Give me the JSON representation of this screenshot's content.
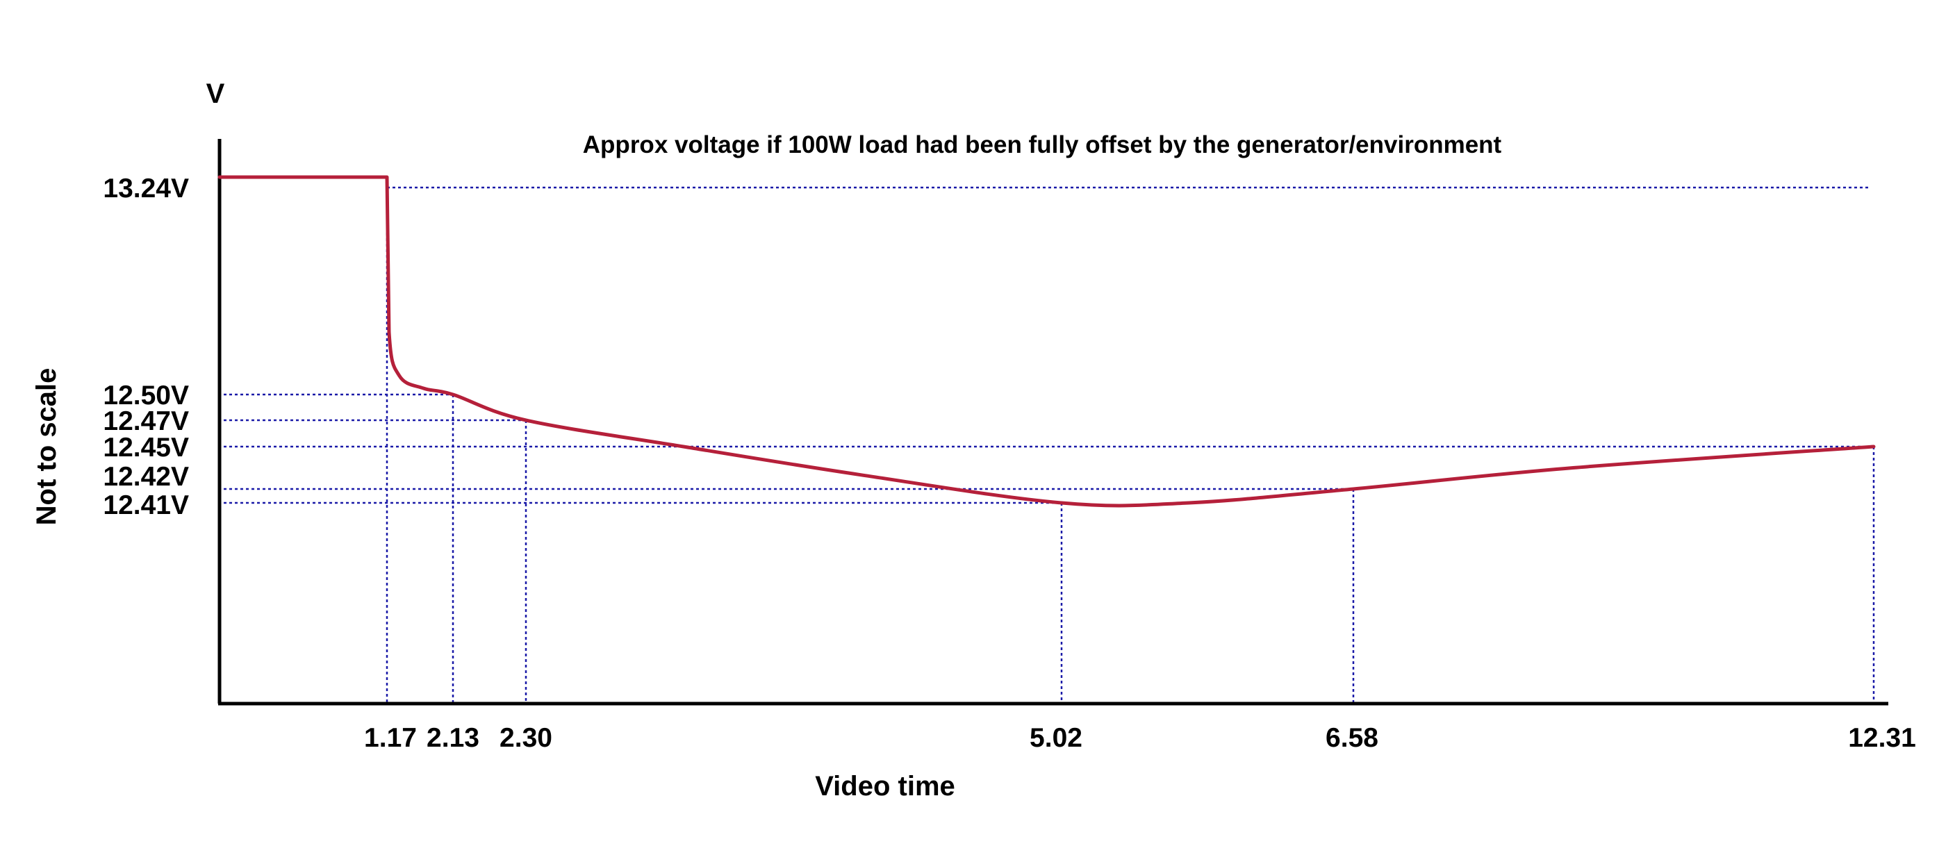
{
  "chart_data": {
    "type": "line",
    "y_unit_label": "V",
    "xlabel": "Video time",
    "ylabel": "Not to scale",
    "annotation": "Approx voltage if 100W load had been fully offset by the generator/environment",
    "y_tick_labels": [
      "13.24V",
      "12.50V",
      "12.47V",
      "12.45V",
      "12.42V",
      "12.41V"
    ],
    "x_tick_labels": [
      "1.17",
      "2.13",
      "2.30",
      "5.02",
      "6.58",
      "12.31"
    ],
    "series": [
      {
        "color": "#b5203a",
        "points": [
          {
            "x": 0,
            "y": 13.24
          },
          {
            "x": 1.17,
            "y": 13.24
          },
          {
            "x": 1.2,
            "y": 12.7
          },
          {
            "x": 1.35,
            "y": 12.56
          },
          {
            "x": 1.7,
            "y": 12.52
          },
          {
            "x": 2.13,
            "y": 12.5
          },
          {
            "x": 2.3,
            "y": 12.47
          },
          {
            "x": 3.1,
            "y": 12.45
          },
          {
            "x": 4.0,
            "y": 12.43
          },
          {
            "x": 5.02,
            "y": 12.41
          },
          {
            "x": 5.7,
            "y": 12.41
          },
          {
            "x": 6.58,
            "y": 12.42
          },
          {
            "x": 9.0,
            "y": 12.435
          },
          {
            "x": 12.31,
            "y": 12.45
          }
        ]
      }
    ],
    "reference_line": {
      "y": 13.24,
      "style": "dotted",
      "color": "#1a1aa8"
    },
    "guide_lines": [
      {
        "y": 12.5,
        "x": 2.13
      },
      {
        "y": 12.47,
        "x": 2.3
      },
      {
        "y": 12.45,
        "x": 12.31
      },
      {
        "y": 12.42,
        "x": 6.58
      },
      {
        "y": 12.41,
        "x": 5.02
      },
      {
        "x": 1.17
      }
    ],
    "guide_color": "#1a1aa8",
    "line_color": "#b5203a",
    "grid": false,
    "legend": "none"
  }
}
